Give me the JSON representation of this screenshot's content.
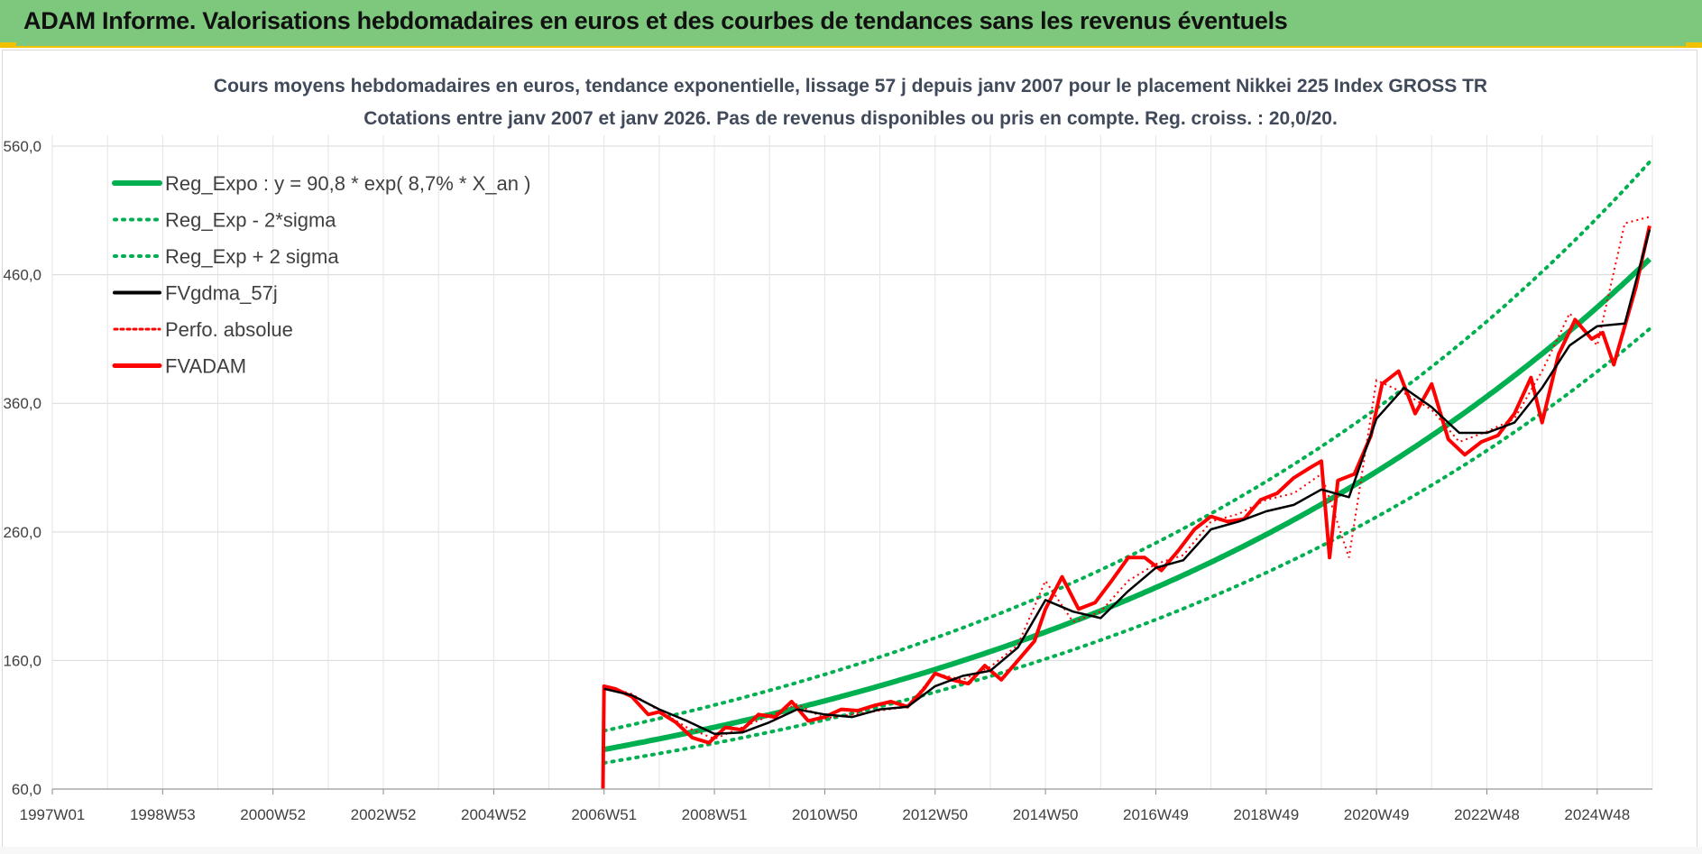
{
  "banner": {
    "title": "ADAM Informe. Valorisations hebdomadaires en euros et des courbes de tendances sans les revenus éventuels",
    "color": "#7dc87c",
    "accent": "#f2c200"
  },
  "chart_data": {
    "type": "line",
    "title": "Cours moyens hebdomadaires en euros, tendance exponentielle, lissage 57 j depuis janv 2007 pour le placement Nikkei 225 Index GROSS TR",
    "subtitle": "Cotations entre janv 2007 et janv 2026. Pas de revenus disponibles ou pris en compte. Reg. croiss. : 20,0/20.",
    "xlabel": "",
    "ylabel": "",
    "x_tick_labels": [
      "1997W01",
      "1998W53",
      "2000W52",
      "2002W52",
      "2004W52",
      "2006W51",
      "2008W51",
      "2010W50",
      "2012W50",
      "2014W50",
      "2016W49",
      "2018W49",
      "2020W49",
      "2022W48",
      "2024W48"
    ],
    "x_range": [
      1997.0,
      2026.0
    ],
    "y_tick_labels": [
      "60,0",
      "160,0",
      "260,0",
      "360,0",
      "460,0",
      "560,0"
    ],
    "y_ticks": [
      60,
      160,
      260,
      360,
      460,
      560
    ],
    "ylim": [
      60,
      600
    ],
    "grid": true,
    "legend_position": "top-left",
    "regression": {
      "a": 90.8,
      "rate": 0.087,
      "x0": 2007.0,
      "sigma_factor_low": 0.885,
      "sigma_factor_high": 1.16
    },
    "series": [
      {
        "name": "Reg_Expo : y = 90,8 * exp( 8,7% *  X_an )",
        "style": "solid-thick",
        "color": "#00b050"
      },
      {
        "name": "Reg_Exp - 2*sigma",
        "style": "dotted",
        "color": "#00b050"
      },
      {
        "name": "Reg_Exp + 2 sigma",
        "style": "dotted",
        "color": "#00b050"
      },
      {
        "name": "FVgdma_57j",
        "style": "solid",
        "color": "#000000",
        "x": [
          2007.0,
          2007.5,
          2008.0,
          2008.5,
          2009.0,
          2009.5,
          2010.0,
          2010.5,
          2011.0,
          2011.5,
          2012.0,
          2012.5,
          2013.0,
          2013.5,
          2014.0,
          2014.5,
          2015.0,
          2015.5,
          2016.0,
          2016.5,
          2017.0,
          2017.5,
          2018.0,
          2018.5,
          2019.0,
          2019.5,
          2020.0,
          2020.5,
          2021.0,
          2021.5,
          2022.0,
          2022.5,
          2023.0,
          2023.5,
          2024.0,
          2024.5,
          2025.0,
          2025.5,
          2025.95
        ],
        "y": [
          138,
          133,
          122,
          113,
          103,
          104,
          112,
          122,
          118,
          116,
          122,
          124,
          140,
          148,
          152,
          170,
          207,
          198,
          193,
          214,
          232,
          238,
          262,
          268,
          276,
          281,
          293,
          287,
          348,
          372,
          357,
          337,
          337,
          345,
          372,
          405,
          420,
          422,
          495
        ]
      },
      {
        "name": "Perfo. absolue",
        "style": "dotted",
        "color": "#ff0000",
        "x": [
          2007.0,
          2007.5,
          2008.0,
          2008.5,
          2009.0,
          2009.5,
          2010.0,
          2010.5,
          2011.0,
          2011.5,
          2012.0,
          2012.5,
          2013.0,
          2013.5,
          2014.0,
          2014.5,
          2015.0,
          2015.5,
          2016.0,
          2016.5,
          2017.0,
          2017.5,
          2018.0,
          2018.5,
          2019.0,
          2019.5,
          2020.0,
          2020.5,
          2021.0,
          2021.5,
          2022.0,
          2022.5,
          2023.0,
          2023.5,
          2024.0,
          2024.5,
          2025.0,
          2025.5,
          2025.95
        ],
        "y": [
          140,
          134,
          121,
          108,
          99,
          108,
          117,
          126,
          115,
          118,
          121,
          124,
          150,
          145,
          155,
          172,
          222,
          190,
          198,
          222,
          235,
          242,
          268,
          274,
          285,
          290,
          305,
          240,
          378,
          368,
          355,
          330,
          338,
          348,
          385,
          430,
          405,
          500,
          505
        ]
      },
      {
        "name": "FVADAM",
        "style": "solid-thick",
        "color": "#ff0000",
        "x": [
          2006.98,
          2007.0,
          2007.2,
          2007.5,
          2007.8,
          2008.0,
          2008.3,
          2008.6,
          2008.9,
          2009.2,
          2009.5,
          2009.8,
          2010.1,
          2010.4,
          2010.7,
          2011.0,
          2011.3,
          2011.6,
          2011.9,
          2012.2,
          2012.5,
          2012.8,
          2013.0,
          2013.3,
          2013.6,
          2013.9,
          2014.2,
          2014.5,
          2014.8,
          2015.0,
          2015.3,
          2015.6,
          2015.9,
          2016.2,
          2016.5,
          2016.8,
          2017.1,
          2017.4,
          2017.7,
          2018.0,
          2018.3,
          2018.6,
          2018.9,
          2019.2,
          2019.5,
          2019.8,
          2020.0,
          2020.15,
          2020.3,
          2020.6,
          2020.9,
          2021.1,
          2021.4,
          2021.7,
          2022.0,
          2022.3,
          2022.6,
          2022.9,
          2023.2,
          2023.5,
          2023.8,
          2024.0,
          2024.3,
          2024.6,
          2024.9,
          2025.1,
          2025.3,
          2025.5,
          2025.7,
          2025.95
        ],
        "y": [
          60,
          140,
          138,
          132,
          118,
          120,
          112,
          100,
          96,
          108,
          106,
          118,
          116,
          128,
          113,
          116,
          122,
          121,
          125,
          128,
          124,
          138,
          150,
          145,
          142,
          156,
          145,
          160,
          175,
          200,
          225,
          200,
          205,
          222,
          240,
          240,
          230,
          245,
          262,
          272,
          268,
          270,
          285,
          290,
          302,
          310,
          315,
          240,
          300,
          305,
          335,
          375,
          385,
          352,
          375,
          332,
          320,
          330,
          335,
          352,
          380,
          345,
          398,
          425,
          410,
          415,
          390,
          420,
          450,
          498
        ]
      }
    ]
  }
}
